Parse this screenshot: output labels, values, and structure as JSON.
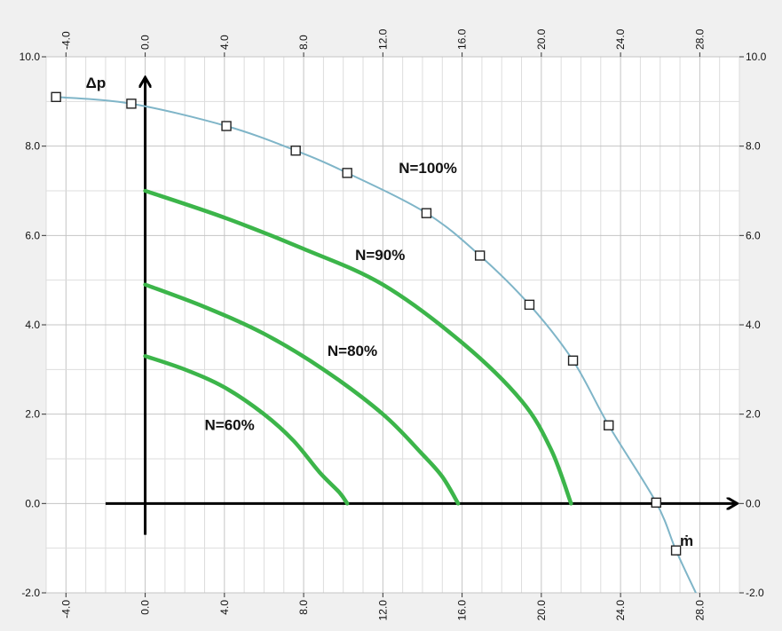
{
  "chart_data": {
    "type": "line",
    "xlim": [
      -5.0,
      30.0
    ],
    "ylim": [
      -2.0,
      10.0
    ],
    "grid": true,
    "x_ticks": [
      -4.0,
      0.0,
      4.0,
      8.0,
      12.0,
      16.0,
      20.0,
      24.0,
      28.0
    ],
    "x_tick_labels": [
      "-4.0",
      "0.0",
      "4.0",
      "8.0",
      "12.0",
      "16.0",
      "20.0",
      "24.0",
      "28.0"
    ],
    "y_ticks": [
      -2.0,
      0.0,
      2.0,
      4.0,
      6.0,
      8.0,
      10.0
    ],
    "y_tick_labels": [
      "-2.0",
      "0.0",
      "2.0",
      "4.0",
      "6.0",
      "8.0",
      "10.0"
    ],
    "xlabel": "ṁ",
    "ylabel": "Δp",
    "series": [
      {
        "name": "N=100%",
        "color": "#7fb5c8",
        "marker": "square",
        "x": [
          -4.5,
          -0.7,
          4.1,
          7.6,
          10.2,
          14.2,
          16.9,
          19.4,
          21.6,
          23.4,
          25.8,
          26.8
        ],
        "y": [
          9.1,
          8.95,
          8.45,
          7.9,
          7.4,
          6.5,
          5.55,
          4.45,
          3.2,
          1.75,
          0.02,
          -1.05
        ],
        "line_x": [
          -4.5,
          -0.7,
          4.1,
          7.6,
          10.2,
          14.2,
          16.9,
          19.4,
          21.6,
          23.4,
          25.8,
          26.8,
          27.8
        ],
        "line_y": [
          9.1,
          8.95,
          8.45,
          7.9,
          7.4,
          6.5,
          5.55,
          4.45,
          3.2,
          1.75,
          0.02,
          -1.05,
          -2.0
        ]
      },
      {
        "name": "N=90%",
        "color": "#3cb54a",
        "x": [
          0.0,
          4.0,
          8.0,
          12.0,
          16.0,
          19.0,
          20.5,
          21.5
        ],
        "y": [
          7.0,
          6.4,
          5.7,
          4.9,
          3.6,
          2.3,
          1.2,
          0.0
        ]
      },
      {
        "name": "N=80%",
        "color": "#3cb54a",
        "x": [
          0.0,
          3.0,
          6.0,
          9.0,
          12.0,
          14.0,
          15.0,
          15.8
        ],
        "y": [
          4.9,
          4.4,
          3.8,
          3.0,
          2.0,
          1.1,
          0.6,
          0.0
        ]
      },
      {
        "name": "N=60%",
        "color": "#3cb54a",
        "x": [
          0.0,
          2.0,
          4.0,
          6.0,
          7.5,
          8.8,
          9.8,
          10.2
        ],
        "y": [
          3.3,
          3.0,
          2.6,
          2.0,
          1.4,
          0.7,
          0.25,
          0.0
        ]
      }
    ],
    "annotations": [
      {
        "text": "N=100%",
        "x": 12.8,
        "y": 7.4
      },
      {
        "text": "N=90%",
        "x": 10.6,
        "y": 5.45
      },
      {
        "text": "N=80%",
        "x": 9.2,
        "y": 3.3
      },
      {
        "text": "N=60%",
        "x": 3.0,
        "y": 1.65
      }
    ]
  }
}
